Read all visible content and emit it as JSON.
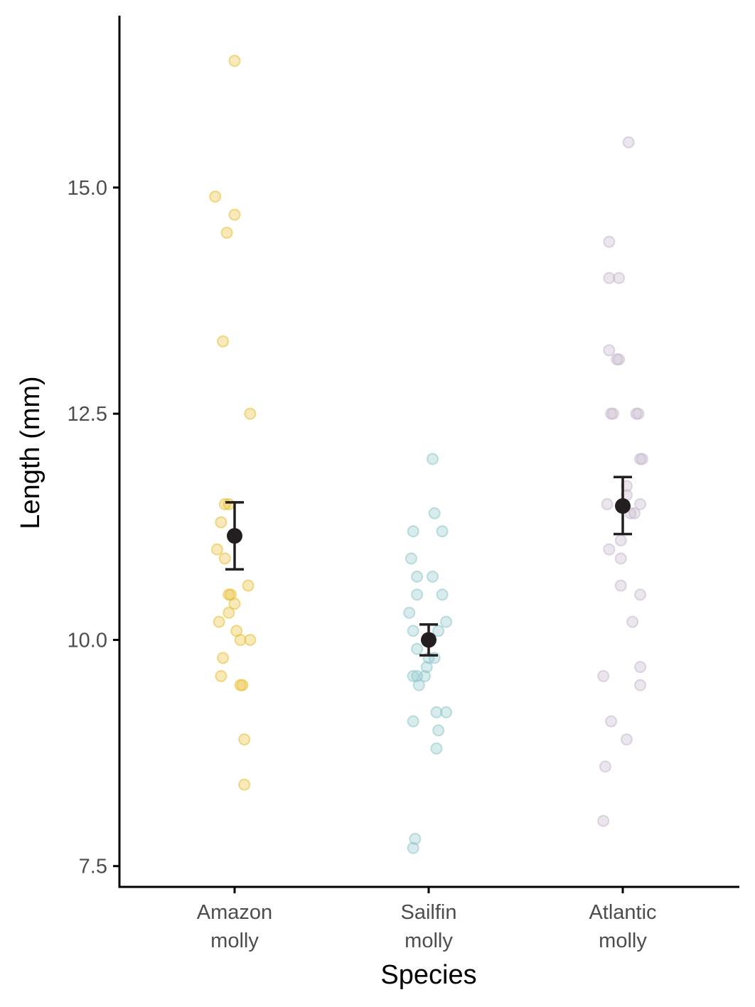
{
  "chart_data": {
    "type": "scatter",
    "xlabel": "Species",
    "ylabel": "Length (mm)",
    "ylim": [
      7.27,
      16.9
    ],
    "yticks": [
      7.5,
      10.0,
      12.5,
      15.0
    ],
    "grid": false,
    "categories": [
      {
        "key": "amazon",
        "label_lines": [
          "Amazon",
          "molly"
        ]
      },
      {
        "key": "sailfin",
        "label_lines": [
          "Sailfin",
          "molly"
        ]
      },
      {
        "key": "atlantic",
        "label_lines": [
          "Atlantic",
          "molly"
        ]
      }
    ],
    "series": [
      {
        "category": "amazon",
        "color": "#e8c036",
        "points": [
          [
            0.0,
            16.4
          ],
          [
            -0.1,
            14.9
          ],
          [
            0.0,
            14.7
          ],
          [
            -0.04,
            14.5
          ],
          [
            -0.06,
            13.3
          ],
          [
            0.08,
            12.5
          ],
          [
            -0.05,
            11.5
          ],
          [
            -0.03,
            11.5
          ],
          [
            -0.07,
            11.3
          ],
          [
            -0.09,
            11.0
          ],
          [
            -0.05,
            10.9
          ],
          [
            0.07,
            10.6
          ],
          [
            -0.03,
            10.5
          ],
          [
            -0.02,
            10.5
          ],
          [
            0.0,
            10.4
          ],
          [
            -0.03,
            10.3
          ],
          [
            -0.08,
            10.2
          ],
          [
            0.01,
            10.1
          ],
          [
            0.03,
            10.0
          ],
          [
            0.08,
            10.0
          ],
          [
            -0.06,
            9.8
          ],
          [
            -0.07,
            9.6
          ],
          [
            0.04,
            9.5
          ],
          [
            0.03,
            9.5
          ],
          [
            0.05,
            8.9
          ],
          [
            0.05,
            8.4
          ]
        ],
        "mean": 11.15,
        "lower": 10.78,
        "upper": 11.52
      },
      {
        "category": "sailfin",
        "color": "#8fc6cb",
        "points": [
          [
            0.02,
            12.0
          ],
          [
            0.03,
            11.4
          ],
          [
            -0.08,
            11.2
          ],
          [
            0.07,
            11.2
          ],
          [
            -0.09,
            10.9
          ],
          [
            -0.06,
            10.7
          ],
          [
            0.02,
            10.7
          ],
          [
            -0.06,
            10.5
          ],
          [
            0.07,
            10.5
          ],
          [
            -0.1,
            10.3
          ],
          [
            0.09,
            10.2
          ],
          [
            -0.08,
            10.1
          ],
          [
            0.05,
            10.1
          ],
          [
            -0.06,
            9.9
          ],
          [
            0.0,
            9.8
          ],
          [
            0.03,
            9.8
          ],
          [
            -0.01,
            9.7
          ],
          [
            -0.08,
            9.6
          ],
          [
            -0.06,
            9.6
          ],
          [
            -0.02,
            9.6
          ],
          [
            -0.05,
            9.5
          ],
          [
            0.04,
            9.2
          ],
          [
            0.09,
            9.2
          ],
          [
            -0.08,
            9.1
          ],
          [
            0.05,
            9.0
          ],
          [
            0.04,
            8.8
          ],
          [
            -0.07,
            7.8
          ],
          [
            -0.08,
            7.7
          ]
        ],
        "mean": 10.0,
        "lower": 9.83,
        "upper": 10.17
      },
      {
        "category": "atlantic",
        "color": "#c6b6cd",
        "points": [
          [
            0.03,
            15.5
          ],
          [
            -0.07,
            14.4
          ],
          [
            -0.07,
            14.0
          ],
          [
            -0.02,
            14.0
          ],
          [
            -0.07,
            13.2
          ],
          [
            -0.03,
            13.1
          ],
          [
            -0.02,
            13.1
          ],
          [
            -0.06,
            12.5
          ],
          [
            -0.05,
            12.5
          ],
          [
            0.07,
            12.5
          ],
          [
            0.08,
            12.5
          ],
          [
            0.09,
            12.0
          ],
          [
            0.1,
            12.0
          ],
          [
            0.02,
            11.7
          ],
          [
            0.02,
            11.6
          ],
          [
            -0.08,
            11.5
          ],
          [
            0.09,
            11.5
          ],
          [
            0.04,
            11.4
          ],
          [
            0.06,
            11.4
          ],
          [
            -0.01,
            11.1
          ],
          [
            -0.07,
            11.0
          ],
          [
            -0.01,
            10.9
          ],
          [
            -0.01,
            10.6
          ],
          [
            0.09,
            10.5
          ],
          [
            0.05,
            10.2
          ],
          [
            0.09,
            9.7
          ],
          [
            -0.1,
            9.6
          ],
          [
            0.09,
            9.5
          ],
          [
            -0.06,
            9.1
          ],
          [
            0.02,
            8.9
          ],
          [
            -0.09,
            8.6
          ],
          [
            -0.1,
            8.0
          ]
        ],
        "mean": 11.48,
        "lower": 11.17,
        "upper": 11.8
      }
    ]
  }
}
